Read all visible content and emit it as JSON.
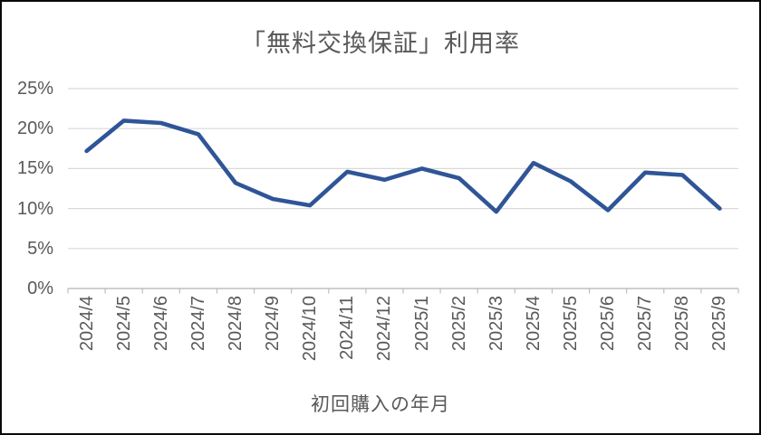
{
  "window": {
    "background_color": "#ffffff",
    "border_color": "#0a0a0a"
  },
  "chart_data": {
    "type": "line",
    "title": "「無料交換保証」利用率",
    "xlabel": "初回購入の年月",
    "ylabel": "",
    "categories": [
      "2024/4",
      "2024/5",
      "2024/6",
      "2024/7",
      "2024/8",
      "2024/9",
      "2024/10",
      "2024/11",
      "2024/12",
      "2025/1",
      "2025/2",
      "2025/3",
      "2025/4",
      "2025/5",
      "2025/6",
      "2025/7",
      "2025/8",
      "2025/9"
    ],
    "values": [
      17.2,
      21.0,
      20.7,
      19.3,
      13.2,
      11.2,
      10.4,
      14.6,
      13.6,
      15.0,
      13.8,
      9.6,
      15.7,
      13.4,
      9.8,
      14.5,
      14.2,
      10.0
    ],
    "unit": "%",
    "ylim": [
      0,
      25
    ],
    "ytick_step": 5,
    "ytick_labels": [
      "0%",
      "5%",
      "10%",
      "15%",
      "20%",
      "25%"
    ],
    "grid": true,
    "legend": "none",
    "line_color": "#2F5597",
    "text_color": "#595959",
    "gridline_color": "#D9D9D9",
    "axis_line_color": "#BFBFBF"
  }
}
